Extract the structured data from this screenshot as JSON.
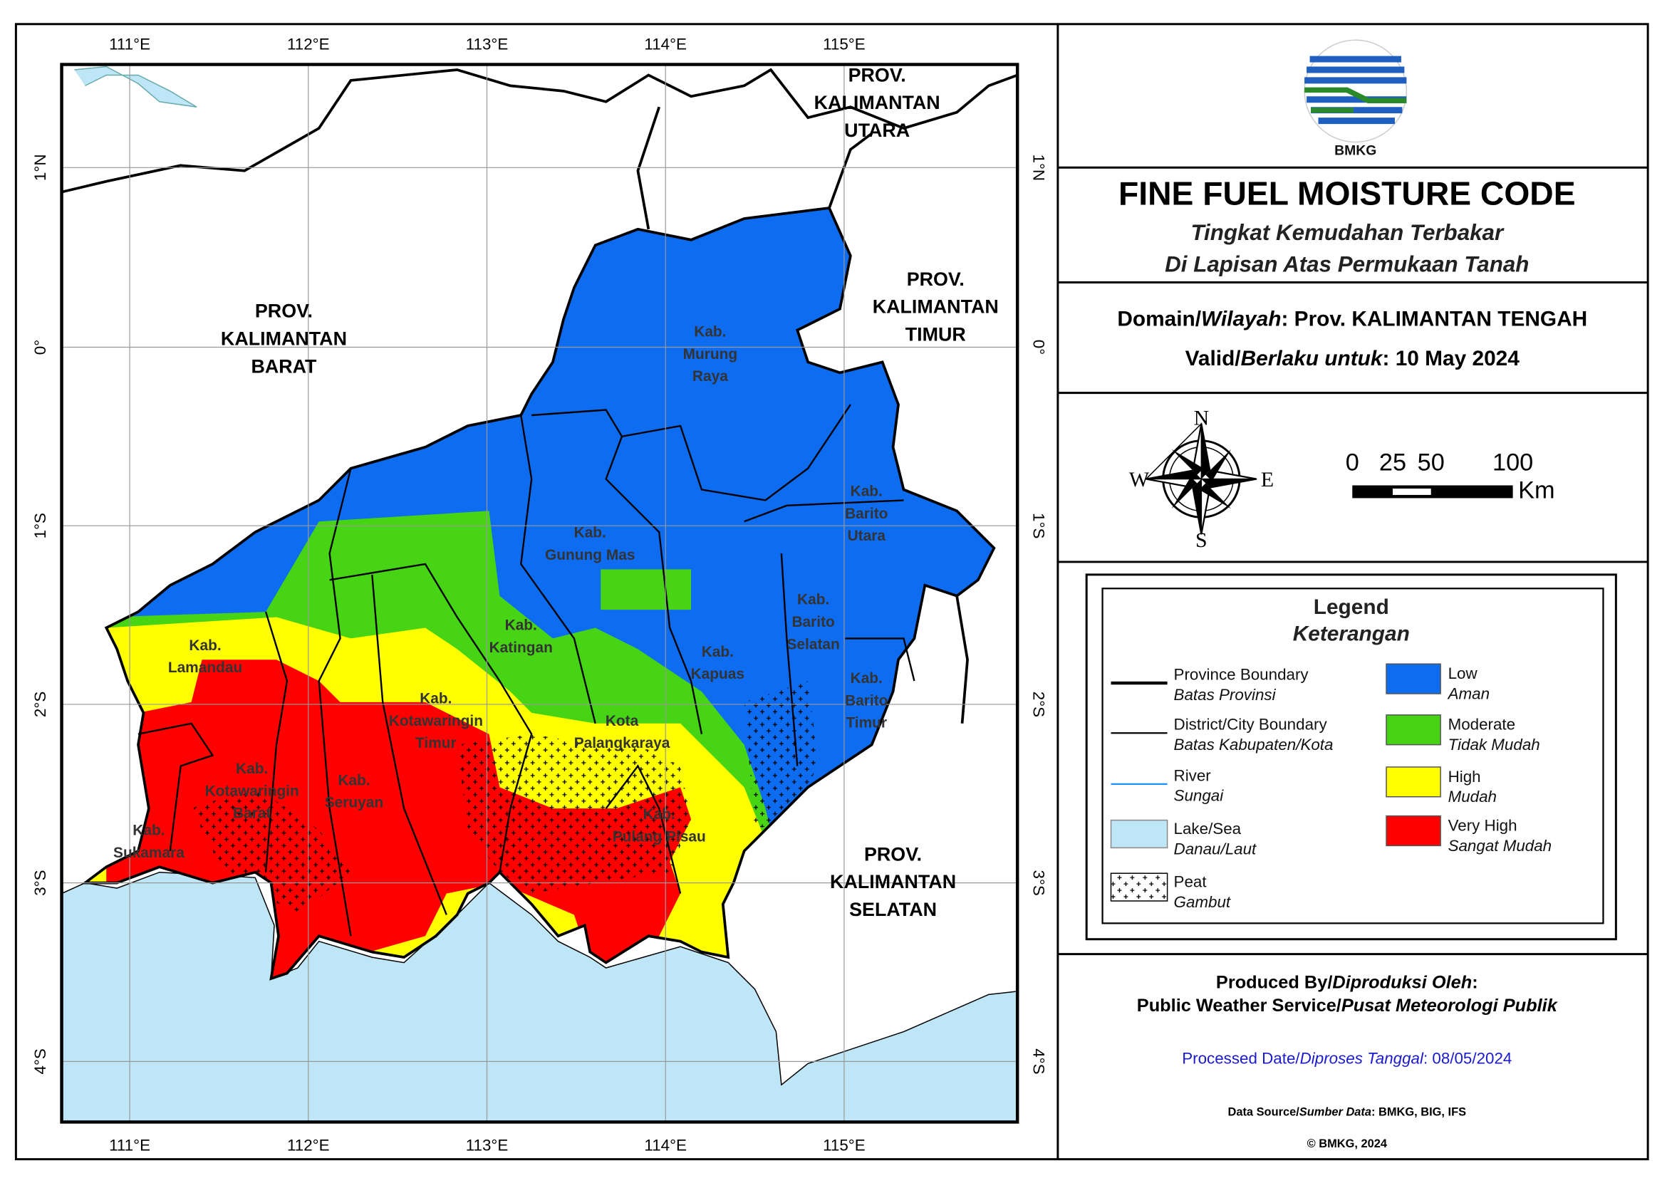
{
  "map": {
    "longitude_labels": [
      "111°E",
      "112°E",
      "113°E",
      "114°E",
      "115°E"
    ],
    "latitude_labels": [
      "1°N",
      "0°",
      "1°S",
      "2°S",
      "3°S",
      "4°S"
    ],
    "province_labels": [
      [
        "PROV.",
        "KALIMANTAN",
        "UTARA"
      ],
      [
        "PROV.",
        "KALIMANTAN",
        "BARAT"
      ],
      [
        "PROV.",
        "KALIMANTAN",
        "TIMUR"
      ],
      [
        "PROV.",
        "KALIMANTAN",
        "SELATAN"
      ]
    ],
    "district_labels": [
      [
        "Kab.",
        "Murung",
        "Raya"
      ],
      [
        "Kab.",
        "Gunung Mas"
      ],
      [
        "Kab.",
        "Barito",
        "Utara"
      ],
      [
        "Kab.",
        "Katingan"
      ],
      [
        "Kab.",
        "Kapuas"
      ],
      [
        "Kab.",
        "Barito",
        "Selatan"
      ],
      [
        "Kab.",
        "Barito",
        "Timur"
      ],
      [
        "Kab.",
        "Lamandau"
      ],
      [
        "Kab.",
        "Kotawaringin",
        "Timur"
      ],
      [
        "Kota",
        "Palangkaraya"
      ],
      [
        "Kab.",
        "Kotawaringin",
        "Barat"
      ],
      [
        "Kab.",
        "Seruyan"
      ],
      [
        "Kab.",
        "Pulang Pisau"
      ],
      [
        "Kab.",
        "Sukamara"
      ]
    ]
  },
  "header": {
    "logo_text": "BMKG",
    "title": "FINE FUEL MOISTURE CODE",
    "subtitle": [
      "Tingkat Kemudahan Terbakar",
      "Di Lapisan Atas Permukaan Tanah"
    ]
  },
  "info": {
    "domain": [
      "Domain/",
      "Wilayah",
      ": Prov. KALIMANTAN TENGAH"
    ],
    "valid": [
      "Valid/",
      "Berlaku untuk",
      ": 10 May 2024"
    ]
  },
  "compass": {
    "north": "N",
    "east": "E",
    "south": "S",
    "west": "W"
  },
  "scale_bar": {
    "labels": [
      0,
      25,
      50,
      100
    ],
    "unit": "Km"
  },
  "legend": {
    "title": "Legend",
    "subtitle": "Keterangan",
    "items": [
      {
        "label": "Province Boundary",
        "translation": "Batas Provinsi"
      },
      {
        "label": "District/City Boundary",
        "translation": "Batas Kabupaten/Kota"
      },
      {
        "label": "River",
        "translation": "Sungai"
      },
      {
        "label": "Lake/Sea",
        "translation": "Danau/Laut"
      },
      {
        "label": "Peat",
        "translation": "Gambut"
      },
      {
        "label": "Low",
        "translation": "Aman"
      },
      {
        "label": "Moderate",
        "translation": "Tidak Mudah"
      },
      {
        "label": "High",
        "translation": "Mudah"
      },
      {
        "label": "Very High",
        "translation": "Sangat Mudah"
      }
    ]
  },
  "footer": {
    "produced_by": [
      "Produced By/",
      "Diproduksi Oleh",
      ":"
    ],
    "producer": [
      "Public Weather Service/",
      "Pusat Meteorologi Publik"
    ],
    "processed": [
      "Processed Date/",
      "Diproses Tanggal",
      ": 08/05/2024"
    ],
    "data_source": [
      "Data Source/",
      "Sumber Data",
      ": BMKG, BIG, IFS"
    ],
    "copyright": "© BMKG, 2024"
  }
}
